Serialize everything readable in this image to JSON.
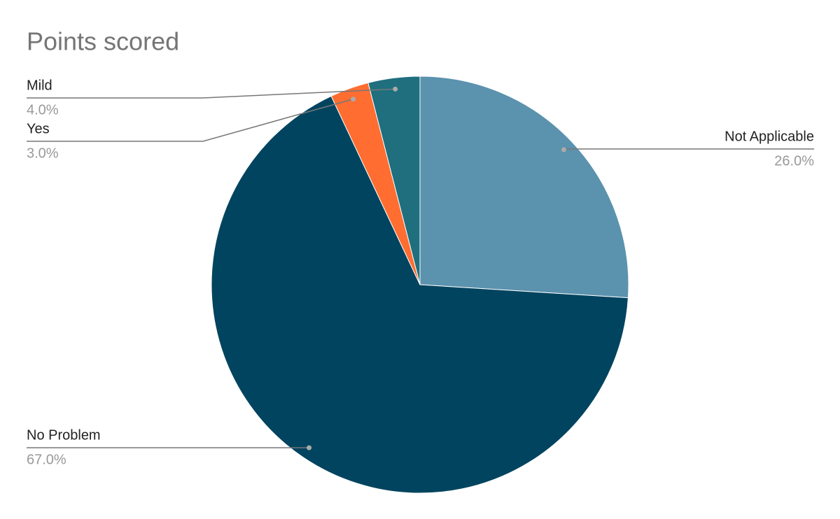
{
  "chart_data": {
    "type": "pie",
    "title": "Points scored",
    "categories": [
      "Not Applicable",
      "No Problem",
      "Yes",
      "Mild"
    ],
    "values": [
      26,
      67,
      3,
      4
    ],
    "value_labels": [
      "26.0%",
      "67.0%",
      "3.0%",
      "4.0%"
    ],
    "colors": [
      "#5b92ae",
      "#00445f",
      "#ff6d31",
      "#1f6f7e"
    ]
  }
}
